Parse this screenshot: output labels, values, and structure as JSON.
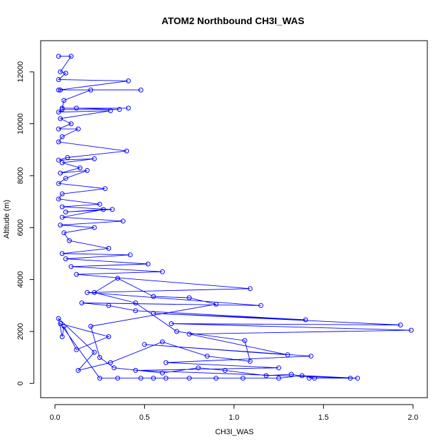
{
  "chart_data": {
    "type": "line",
    "title": "ATOM2 Northbound CH3I_WAS",
    "xlabel": "CH3I_WAS",
    "ylabel": "Altitude (m)",
    "xlim": [
      -0.08,
      2.08
    ],
    "ylim": [
      -550,
      13200
    ],
    "xticks": [
      0.0,
      0.5,
      1.0,
      1.5,
      2.0
    ],
    "xtick_labels": [
      "0.0",
      "0.5",
      "1.0",
      "1.5",
      "2.0"
    ],
    "yticks": [
      0,
      2000,
      4000,
      6000,
      8000,
      10000,
      12000
    ],
    "ytick_labels": [
      "0",
      "2000",
      "4000",
      "6000",
      "8000",
      "10000",
      "12000"
    ],
    "grid": false,
    "legend": "none",
    "marker": "open-circle",
    "series": [
      {
        "color": "#0000ff",
        "points": [
          [
            0.02,
            12600
          ],
          [
            0.09,
            12600
          ],
          [
            0.03,
            12000
          ],
          [
            0.06,
            11950
          ],
          [
            0.02,
            11700
          ],
          [
            0.41,
            11650
          ],
          [
            0.02,
            11300
          ],
          [
            0.48,
            11300
          ],
          [
            0.03,
            11300
          ],
          [
            0.2,
            11300
          ],
          [
            0.05,
            10900
          ],
          [
            0.04,
            10600
          ],
          [
            0.41,
            10600
          ],
          [
            0.12,
            10600
          ],
          [
            0.36,
            10550
          ],
          [
            0.04,
            10550
          ],
          [
            0.02,
            10450
          ],
          [
            0.31,
            10500
          ],
          [
            0.03,
            10200
          ],
          [
            0.09,
            10000
          ],
          [
            0.02,
            9800
          ],
          [
            0.13,
            9800
          ],
          [
            0.04,
            9500
          ],
          [
            0.02,
            9300
          ],
          [
            0.4,
            8950
          ],
          [
            0.07,
            8700
          ],
          [
            0.02,
            8600
          ],
          [
            0.22,
            8650
          ],
          [
            0.04,
            8500
          ],
          [
            0.14,
            8300
          ],
          [
            0.03,
            8100
          ],
          [
            0.18,
            8200
          ],
          [
            0.06,
            7900
          ],
          [
            0.02,
            7700
          ],
          [
            0.28,
            7500
          ],
          [
            0.04,
            7300
          ],
          [
            0.02,
            7100
          ],
          [
            0.25,
            6900
          ],
          [
            0.04,
            6800
          ],
          [
            0.32,
            6700
          ],
          [
            0.06,
            6600
          ],
          [
            0.27,
            6700
          ],
          [
            0.04,
            6400
          ],
          [
            0.38,
            6250
          ],
          [
            0.03,
            6100
          ],
          [
            0.22,
            6000
          ],
          [
            0.05,
            5800
          ],
          [
            0.08,
            5500
          ],
          [
            0.3,
            5200
          ],
          [
            0.04,
            5000
          ],
          [
            0.42,
            4950
          ],
          [
            0.06,
            4800
          ],
          [
            0.52,
            4600
          ],
          [
            0.09,
            4500
          ],
          [
            0.6,
            4300
          ],
          [
            0.12,
            4200
          ],
          [
            1.09,
            3650
          ],
          [
            0.18,
            3500
          ],
          [
            1.15,
            3000
          ],
          [
            0.15,
            3100
          ],
          [
            0.3,
            3000
          ],
          [
            0.45,
            2800
          ],
          [
            1.4,
            2450
          ],
          [
            0.55,
            2700
          ],
          [
            1.93,
            2250
          ],
          [
            0.65,
            2300
          ],
          [
            1.99,
            2050
          ],
          [
            0.75,
            1900
          ],
          [
            1.3,
            1100
          ],
          [
            0.5,
            1500
          ],
          [
            1.43,
            1050
          ],
          [
            0.62,
            800
          ],
          [
            1.25,
            600
          ],
          [
            0.45,
            500
          ],
          [
            1.65,
            200
          ],
          [
            1.42,
            200
          ],
          [
            1.69,
            200
          ],
          [
            1.38,
            300
          ],
          [
            1.25,
            200
          ],
          [
            1.05,
            200
          ],
          [
            0.9,
            200
          ],
          [
            0.75,
            200
          ],
          [
            0.62,
            200
          ],
          [
            0.55,
            200
          ],
          [
            0.48,
            200
          ],
          [
            0.35,
            200
          ],
          [
            0.25,
            200
          ],
          [
            0.03,
            2300
          ],
          [
            0.3,
            1800
          ],
          [
            0.12,
            1300
          ],
          [
            0.05,
            2200
          ],
          [
            0.04,
            1800
          ],
          [
            0.02,
            2500
          ],
          [
            0.22,
            1200
          ],
          [
            0.13,
            500
          ],
          [
            0.31,
            800
          ],
          [
            0.6,
            1600
          ],
          [
            0.85,
            1050
          ],
          [
            1.09,
            850
          ],
          [
            1.06,
            1650
          ],
          [
            0.68,
            2000
          ],
          [
            0.45,
            3100
          ],
          [
            0.22,
            3500
          ],
          [
            0.35,
            4050
          ],
          [
            0.55,
            3350
          ],
          [
            0.75,
            3300
          ],
          [
            0.9,
            3050
          ],
          [
            0.2,
            2200
          ],
          [
            0.25,
            1000
          ],
          [
            0.33,
            600
          ],
          [
            0.6,
            400
          ],
          [
            0.8,
            600
          ],
          [
            0.95,
            500
          ],
          [
            1.18,
            300
          ],
          [
            1.32,
            350
          ],
          [
            1.45,
            200
          ]
        ]
      }
    ]
  }
}
